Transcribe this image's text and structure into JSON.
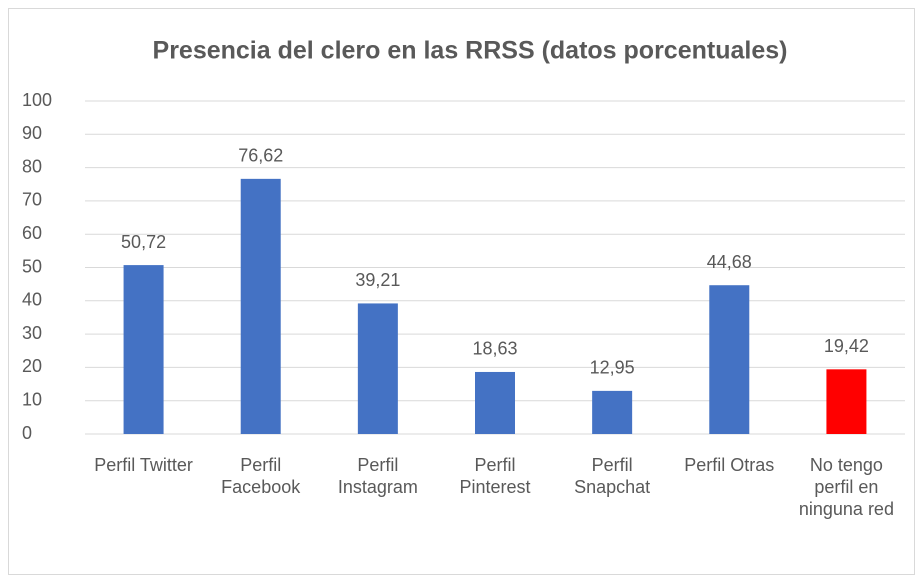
{
  "chart_data": {
    "type": "bar",
    "title": "Presencia del clero en las RRSS (datos porcentuales)",
    "categories": [
      "Perfil Twitter",
      "Perfil Facebook",
      "Perfil Instagram",
      "Perfil Pinterest",
      "Perfil Snapchat",
      "Perfil Otras",
      "No tengo perfil en ninguna red"
    ],
    "values": [
      50.72,
      76.62,
      39.21,
      18.63,
      12.95,
      44.68,
      19.42
    ],
    "value_labels": [
      "50,72",
      "76,62",
      "39,21",
      "18,63",
      "12,95",
      "44,68",
      "19,42"
    ],
    "colors": [
      "#4472c4",
      "#4472c4",
      "#4472c4",
      "#4472c4",
      "#4472c4",
      "#4472c4",
      "#ff0000"
    ],
    "ylim": [
      0,
      100
    ],
    "yticks": [
      0,
      10,
      20,
      30,
      40,
      50,
      60,
      70,
      80,
      90,
      100
    ],
    "grid": true
  }
}
